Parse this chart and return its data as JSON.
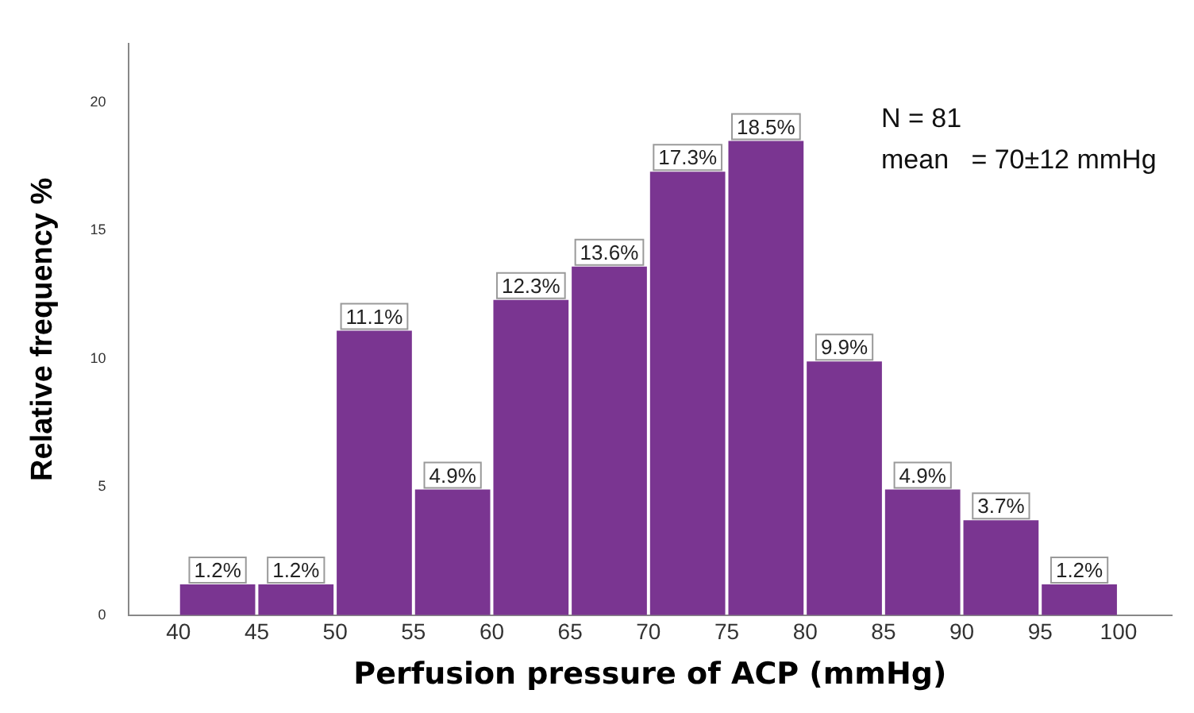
{
  "chart_data": {
    "type": "histogram",
    "xlabel": "Perfusion pressure of ACP (mmHg)",
    "ylabel": "Relative frequency %",
    "bins": [
      40,
      45,
      50,
      55,
      60,
      65,
      70,
      75,
      80,
      85,
      90,
      95,
      100
    ],
    "values": [
      1.2,
      1.2,
      11.1,
      4.9,
      12.3,
      13.6,
      17.3,
      18.5,
      9.9,
      4.9,
      3.7,
      1.2
    ],
    "value_labels": [
      "1.2%",
      "1.2%",
      "11.1%",
      "4.9%",
      "12.3%",
      "13.6%",
      "17.3%",
      "18.5%",
      "9.9%",
      "4.9%",
      "3.7%",
      "1.2%"
    ],
    "color": "#7a3591",
    "xlim": [
      36.8,
      103.4
    ],
    "xticks": [
      40,
      45,
      50,
      55,
      60,
      65,
      70,
      75,
      80,
      85,
      90,
      95,
      100
    ],
    "ylim": [
      0,
      22.3
    ],
    "yticks": [
      0,
      5,
      10,
      15,
      20
    ],
    "grid": false,
    "legend": false,
    "annotations": [
      "N = 81",
      "mean   = 70±12 mmHg"
    ]
  }
}
